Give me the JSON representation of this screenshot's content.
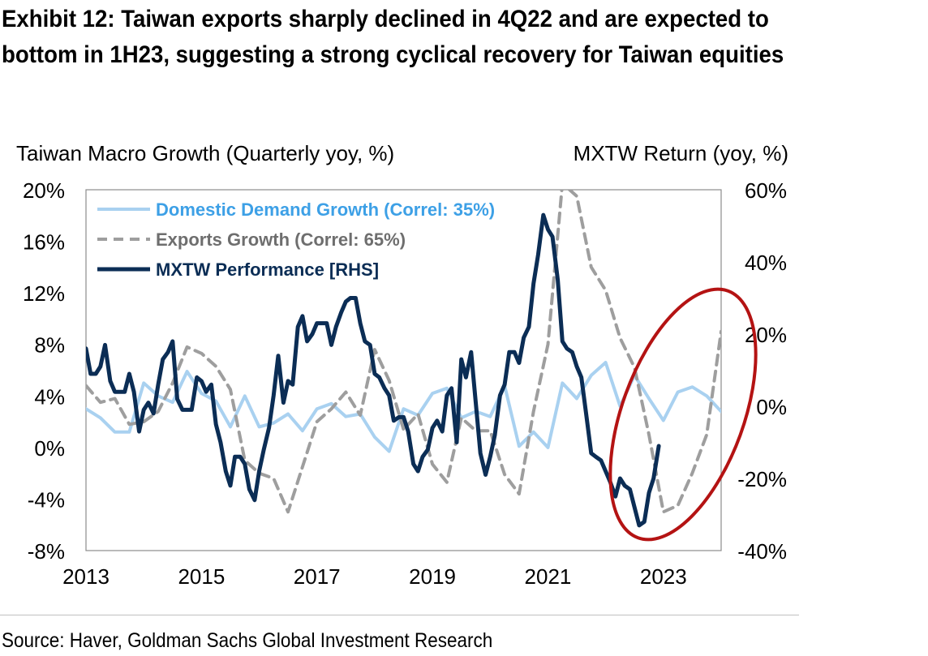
{
  "title": "Exhibit 12: Taiwan exports sharply declined in 4Q22 and are expected to bottom in 1H23, suggesting a strong cyclical recovery for Taiwan equities",
  "source": "Source: Haver, Goldman Sachs Global Investment Research",
  "colors": {
    "domestic": "#a9d1f0",
    "domestic_text": "#3da0e6",
    "exports": "#9e9e9e",
    "exports_text": "#6e6e6e",
    "mxtw": "#0b2d55",
    "mxtw_text": "#0b2d55",
    "ellipse": "#b41313"
  },
  "chart_data": {
    "type": "line",
    "title": "Exhibit 12: Taiwan exports sharply declined in 4Q22 and are expected to bottom in 1H23, suggesting a strong cyclical recovery for Taiwan equities",
    "ylabel_left": "Taiwan Macro Growth (Quarterly yoy, %)",
    "ylabel_right": "MXTW Return (yoy, %)",
    "xlim": [
      2013,
      2024
    ],
    "ylim_left": [
      -8,
      20
    ],
    "ylim_right": [
      -40,
      60
    ],
    "xticks": [
      "2013",
      "2015",
      "2017",
      "2019",
      "2021",
      "2023"
    ],
    "yticks_left": [
      "20%",
      "16%",
      "12%",
      "8%",
      "4%",
      "0%",
      "-4%",
      "-8%"
    ],
    "yticks_right": [
      "60%",
      "40%",
      "20%",
      "0%",
      "-20%",
      "-40%"
    ],
    "legend_position": "top-left",
    "annotation": "red ellipse highlighting 2022-2023 trough and expected recovery",
    "series": [
      {
        "name": "Domestic Demand Growth (Correl: 35%)",
        "axis": "left",
        "style": "solid-light",
        "points": [
          [
            2013.0,
            3.0
          ],
          [
            2013.25,
            2.3
          ],
          [
            2013.5,
            1.2
          ],
          [
            2013.75,
            1.2
          ],
          [
            2014.0,
            5.0
          ],
          [
            2014.25,
            4.0
          ],
          [
            2014.5,
            3.5
          ],
          [
            2014.75,
            5.9
          ],
          [
            2015.0,
            4.2
          ],
          [
            2015.25,
            3.6
          ],
          [
            2015.5,
            1.6
          ],
          [
            2015.75,
            4.0
          ],
          [
            2016.0,
            1.6
          ],
          [
            2016.25,
            1.9
          ],
          [
            2016.5,
            2.6
          ],
          [
            2016.75,
            1.3
          ],
          [
            2017.0,
            3.0
          ],
          [
            2017.25,
            3.4
          ],
          [
            2017.5,
            2.4
          ],
          [
            2017.75,
            2.6
          ],
          [
            2018.0,
            0.8
          ],
          [
            2018.25,
            -0.3
          ],
          [
            2018.5,
            3.0
          ],
          [
            2018.75,
            2.5
          ],
          [
            2019.0,
            4.2
          ],
          [
            2019.25,
            4.6
          ],
          [
            2019.5,
            2.3
          ],
          [
            2019.75,
            2.8
          ],
          [
            2020.0,
            2.4
          ],
          [
            2020.25,
            4.8
          ],
          [
            2020.5,
            0.1
          ],
          [
            2020.75,
            1.2
          ],
          [
            2021.0,
            0.0
          ],
          [
            2021.25,
            5.0
          ],
          [
            2021.5,
            3.8
          ],
          [
            2021.75,
            5.6
          ],
          [
            2022.0,
            6.6
          ],
          [
            2022.25,
            3.2
          ],
          [
            2022.5,
            5.6
          ],
          [
            2022.75,
            3.8
          ],
          [
            2023.0,
            2.1
          ],
          [
            2023.25,
            4.3
          ],
          [
            2023.5,
            4.7
          ],
          [
            2023.75,
            4.0
          ],
          [
            2024.0,
            2.8
          ]
        ]
      },
      {
        "name": "Exports Growth (Correl: 65%)",
        "axis": "left",
        "style": "dashed",
        "points": [
          [
            2013.0,
            4.8
          ],
          [
            2013.25,
            3.5
          ],
          [
            2013.5,
            3.8
          ],
          [
            2013.75,
            1.8
          ],
          [
            2014.0,
            2.0
          ],
          [
            2014.25,
            2.8
          ],
          [
            2014.5,
            5.0
          ],
          [
            2014.75,
            7.8
          ],
          [
            2015.0,
            7.3
          ],
          [
            2015.25,
            6.3
          ],
          [
            2015.5,
            4.5
          ],
          [
            2015.75,
            -1.0
          ],
          [
            2016.0,
            -2.0
          ],
          [
            2016.25,
            -2.4
          ],
          [
            2016.5,
            -5.0
          ],
          [
            2016.75,
            -1.5
          ],
          [
            2017.0,
            2.0
          ],
          [
            2017.25,
            3.0
          ],
          [
            2017.5,
            4.3
          ],
          [
            2017.75,
            2.5
          ],
          [
            2018.0,
            7.6
          ],
          [
            2018.25,
            5.2
          ],
          [
            2018.5,
            1.4
          ],
          [
            2018.75,
            2.6
          ],
          [
            2019.0,
            -1.3
          ],
          [
            2019.25,
            -2.7
          ],
          [
            2019.5,
            2.3
          ],
          [
            2019.75,
            1.3
          ],
          [
            2020.0,
            1.3
          ],
          [
            2020.25,
            -2.1
          ],
          [
            2020.5,
            -3.6
          ],
          [
            2020.75,
            2.8
          ],
          [
            2021.0,
            8.0
          ],
          [
            2021.25,
            20.5
          ],
          [
            2021.5,
            19.5
          ],
          [
            2021.75,
            14.0
          ],
          [
            2022.0,
            12.2
          ],
          [
            2022.25,
            8.5
          ],
          [
            2022.5,
            6.2
          ],
          [
            2022.75,
            1.0
          ],
          [
            2023.0,
            -5.0
          ],
          [
            2023.25,
            -4.5
          ],
          [
            2023.5,
            -2.0
          ],
          [
            2023.75,
            1.0
          ],
          [
            2024.0,
            9.0
          ]
        ]
      },
      {
        "name": "MXTW Performance [RHS]",
        "axis": "right",
        "style": "solid-dark",
        "points": [
          [
            2013.0,
            16
          ],
          [
            2013.08,
            9
          ],
          [
            2013.17,
            9
          ],
          [
            2013.25,
            11
          ],
          [
            2013.33,
            17
          ],
          [
            2013.42,
            7
          ],
          [
            2013.5,
            4
          ],
          [
            2013.58,
            4
          ],
          [
            2013.67,
            4
          ],
          [
            2013.75,
            9
          ],
          [
            2013.83,
            4
          ],
          [
            2013.92,
            -7
          ],
          [
            2014.0,
            -1
          ],
          [
            2014.08,
            1
          ],
          [
            2014.17,
            -2
          ],
          [
            2014.25,
            6
          ],
          [
            2014.33,
            13
          ],
          [
            2014.42,
            15
          ],
          [
            2014.5,
            18
          ],
          [
            2014.58,
            2
          ],
          [
            2014.67,
            -1
          ],
          [
            2014.75,
            -1
          ],
          [
            2014.83,
            -1
          ],
          [
            2014.92,
            8
          ],
          [
            2015.0,
            7
          ],
          [
            2015.08,
            4
          ],
          [
            2015.17,
            6
          ],
          [
            2015.25,
            -5
          ],
          [
            2015.33,
            -10
          ],
          [
            2015.42,
            -18
          ],
          [
            2015.5,
            -22
          ],
          [
            2015.58,
            -14
          ],
          [
            2015.67,
            -14
          ],
          [
            2015.75,
            -16
          ],
          [
            2015.83,
            -23
          ],
          [
            2015.92,
            -26
          ],
          [
            2016.0,
            -18
          ],
          [
            2016.08,
            -12
          ],
          [
            2016.17,
            -6
          ],
          [
            2016.25,
            3
          ],
          [
            2016.33,
            14
          ],
          [
            2016.42,
            1
          ],
          [
            2016.5,
            7
          ],
          [
            2016.58,
            6
          ],
          [
            2016.67,
            22
          ],
          [
            2016.75,
            25
          ],
          [
            2016.83,
            18
          ],
          [
            2016.92,
            20
          ],
          [
            2017.0,
            23
          ],
          [
            2017.08,
            23
          ],
          [
            2017.17,
            23
          ],
          [
            2017.25,
            17
          ],
          [
            2017.33,
            22
          ],
          [
            2017.42,
            26
          ],
          [
            2017.5,
            29
          ],
          [
            2017.58,
            30
          ],
          [
            2017.67,
            30
          ],
          [
            2017.75,
            23
          ],
          [
            2017.83,
            18
          ],
          [
            2017.92,
            17
          ],
          [
            2018.0,
            9
          ],
          [
            2018.08,
            8
          ],
          [
            2018.17,
            5
          ],
          [
            2018.25,
            3
          ],
          [
            2018.33,
            -4
          ],
          [
            2018.42,
            -3
          ],
          [
            2018.5,
            -3
          ],
          [
            2018.58,
            -7
          ],
          [
            2018.67,
            -16
          ],
          [
            2018.75,
            -18
          ],
          [
            2018.83,
            -14
          ],
          [
            2018.92,
            -12
          ],
          [
            2019.0,
            -6
          ],
          [
            2019.08,
            -4
          ],
          [
            2019.17,
            -7
          ],
          [
            2019.25,
            3
          ],
          [
            2019.33,
            5
          ],
          [
            2019.42,
            -10
          ],
          [
            2019.5,
            13
          ],
          [
            2019.58,
            8
          ],
          [
            2019.67,
            15
          ],
          [
            2019.75,
            1
          ],
          [
            2019.83,
            -13
          ],
          [
            2019.92,
            -19
          ],
          [
            2020.0,
            -14
          ],
          [
            2020.08,
            -8
          ],
          [
            2020.17,
            3
          ],
          [
            2020.25,
            6
          ],
          [
            2020.33,
            15
          ],
          [
            2020.42,
            15
          ],
          [
            2020.5,
            12
          ],
          [
            2020.58,
            19
          ],
          [
            2020.67,
            22
          ],
          [
            2020.75,
            34
          ],
          [
            2020.83,
            42
          ],
          [
            2020.92,
            53
          ],
          [
            2021.0,
            49
          ],
          [
            2021.08,
            47
          ],
          [
            2021.17,
            35
          ],
          [
            2021.25,
            18
          ],
          [
            2021.33,
            16
          ],
          [
            2021.42,
            15
          ],
          [
            2021.5,
            11
          ],
          [
            2021.58,
            8
          ],
          [
            2021.67,
            -3
          ],
          [
            2021.75,
            -13
          ],
          [
            2021.83,
            -14
          ],
          [
            2021.92,
            -15
          ],
          [
            2022.0,
            -18
          ],
          [
            2022.08,
            -21
          ],
          [
            2022.17,
            -25
          ],
          [
            2022.25,
            -20
          ],
          [
            2022.33,
            -22
          ],
          [
            2022.42,
            -23
          ],
          [
            2022.5,
            -28
          ],
          [
            2022.58,
            -33
          ],
          [
            2022.67,
            -32
          ],
          [
            2022.75,
            -24
          ],
          [
            2022.83,
            -20
          ],
          [
            2022.92,
            -11
          ]
        ]
      }
    ]
  }
}
